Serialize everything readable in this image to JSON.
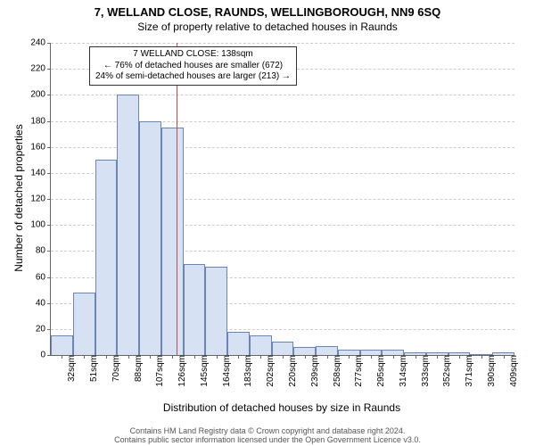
{
  "title": "7, WELLAND CLOSE, RAUNDS, WELLINGBOROUGH, NN9 6SQ",
  "subtitle": "Size of property relative to detached houses in Raunds",
  "title_fontsize": 13,
  "subtitle_fontsize": 12,
  "chart": {
    "type": "histogram",
    "background_color": "#ffffff",
    "grid_color": "#cccccc",
    "bar_fill": "#d6e2f3",
    "bar_border": "#6b86b3",
    "ref_line_color": "#c04d4d",
    "ymin": 0,
    "ymax": 240,
    "ytick_step": 20,
    "ylabel": "Number of detached properties",
    "xlabel": "Distribution of detached houses by size in Raunds",
    "label_fontsize": 12,
    "tick_fontsize": 10,
    "xticks": [
      "32sqm",
      "51sqm",
      "70sqm",
      "88sqm",
      "107sqm",
      "126sqm",
      "145sqm",
      "164sqm",
      "183sqm",
      "202sqm",
      "220sqm",
      "239sqm",
      "258sqm",
      "277sqm",
      "295sqm",
      "314sqm",
      "333sqm",
      "352sqm",
      "371sqm",
      "390sqm",
      "409sqm"
    ],
    "bars": [
      15,
      48,
      150,
      200,
      180,
      175,
      70,
      68,
      18,
      15,
      10,
      6,
      7,
      4,
      4,
      4,
      2,
      2,
      2,
      0,
      2
    ],
    "ref_line_index": 5.7
  },
  "annotation": {
    "line1": "7 WELLAND CLOSE: 138sqm",
    "line2": "← 76% of detached houses are smaller (672)",
    "line3": "24% of semi-detached houses are larger (213) →",
    "fontsize": 10
  },
  "footer": {
    "line1": "Contains HM Land Registry data © Crown copyright and database right 2024.",
    "line2": "Contains public sector information licensed under the Open Government Licence v3.0.",
    "fontsize": 9
  }
}
